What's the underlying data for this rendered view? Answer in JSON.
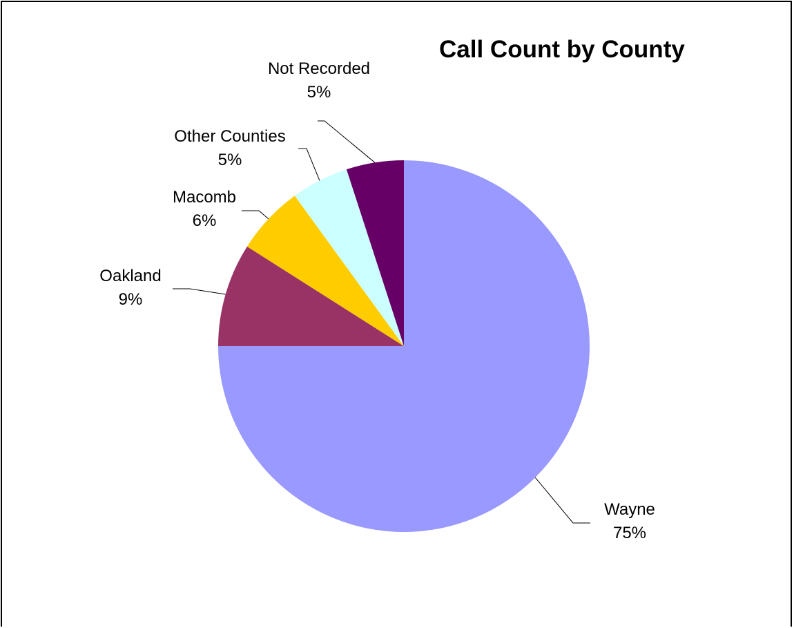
{
  "chart_data": {
    "type": "pie",
    "title": "Call Count by County",
    "legend": "none",
    "start_angle": "12 o'clock",
    "direction": "clockwise",
    "slices": [
      {
        "label": "Wayne",
        "value": 75,
        "percent_label": "75%",
        "color": "#9999FF"
      },
      {
        "label": "Oakland",
        "value": 9,
        "percent_label": "9%",
        "color": "#993366"
      },
      {
        "label": "Macomb",
        "value": 6,
        "percent_label": "6%",
        "color": "#FFCC00"
      },
      {
        "label": "Other Counties",
        "value": 5,
        "percent_label": "5%",
        "color": "#CCFFFF"
      },
      {
        "label": "Not Recorded",
        "value": 5,
        "percent_label": "5%",
        "color": "#660066"
      }
    ]
  }
}
